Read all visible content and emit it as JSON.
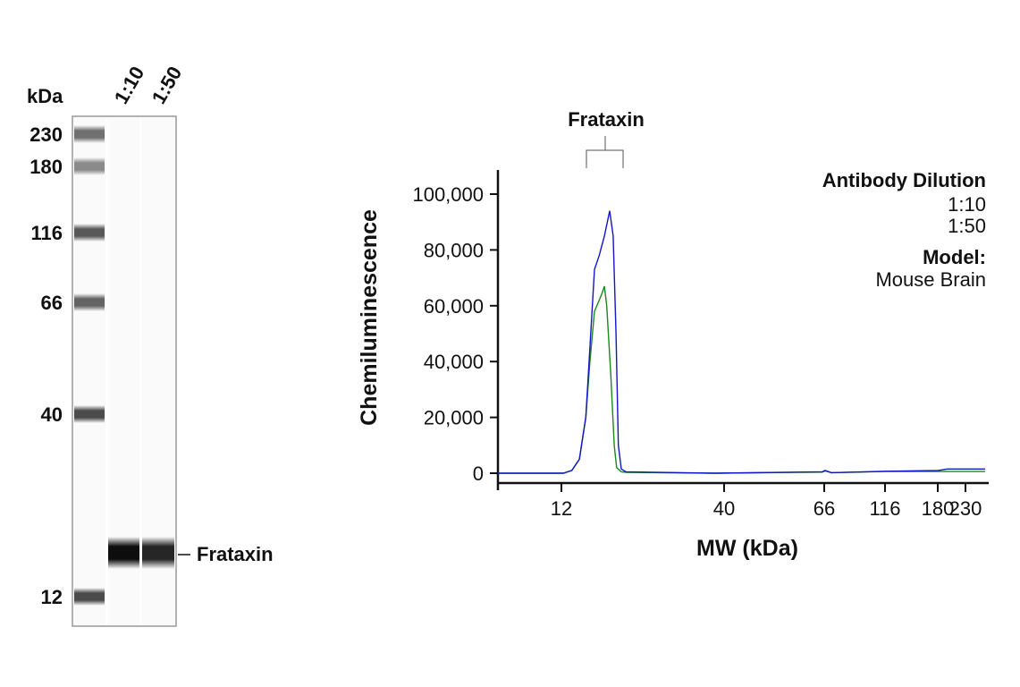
{
  "blot": {
    "unit_label": "kDa",
    "lane_labels": [
      "1:10",
      "1:50"
    ],
    "ladder": [
      {
        "label": "230",
        "kda": 230,
        "intensity": 0.55
      },
      {
        "label": "180",
        "kda": 180,
        "intensity": 0.45
      },
      {
        "label": "116",
        "kda": 116,
        "intensity": 0.65
      },
      {
        "label": "66",
        "kda": 66,
        "intensity": 0.6
      },
      {
        "label": "40",
        "kda": 40,
        "intensity": 0.7
      },
      {
        "label": "12",
        "kda": 12,
        "intensity": 0.7
      }
    ],
    "band_label": "Frataxin",
    "band_intensity": [
      0.95,
      0.85
    ]
  },
  "chart_data": {
    "type": "line",
    "title": "",
    "peak_annotation": "Frataxin",
    "xlabel": "MW (kDa)",
    "ylabel": "Chemiluminescence",
    "x_ticks": [
      12,
      40,
      66,
      116,
      180,
      230
    ],
    "x_tick_labels": [
      "12",
      "40",
      "66",
      "116",
      "180",
      "230"
    ],
    "y_ticks": [
      0,
      20000,
      40000,
      60000,
      80000,
      100000
    ],
    "y_tick_labels": [
      "0",
      "20,000",
      "40,000",
      "60,000",
      "80,000",
      "100,000"
    ],
    "ylim": [
      0,
      110000
    ],
    "grid": false,
    "legend": {
      "title": "Antibody Dilution",
      "placement": "top-right",
      "model_label": "Model:",
      "model_value": "Mouse Brain"
    },
    "series": [
      {
        "name": "1:10",
        "color": "#1414c8",
        "label_color": "#2a3f9d",
        "x": [
          1.1,
          12.3,
          13.8,
          15.1,
          16.2,
          16.9,
          17.7,
          18.5,
          19.4,
          20.3,
          20.9,
          21.4,
          21.8,
          22.3,
          23.1,
          38.5,
          65.5,
          66.7,
          71.9,
          116,
          181,
          197,
          262
        ],
        "y": [
          0,
          0,
          1000,
          5000,
          20000,
          45000,
          73000,
          78000,
          85000,
          94000,
          85000,
          50000,
          10000,
          1500,
          500,
          0,
          500,
          1000,
          200,
          700,
          1000,
          1500,
          1500
        ]
      },
      {
        "name": "1:50",
        "color": "#1a8a1a",
        "label_color": "#1a8a3a",
        "x": [
          1.1,
          12.3,
          13.8,
          15.1,
          16.2,
          16.9,
          17.7,
          18.5,
          18.9,
          19.4,
          19.8,
          20.5,
          21.1,
          21.5,
          22.3,
          23.1,
          38.5,
          65.5,
          66.7,
          71.9,
          116,
          181,
          262
        ],
        "y": [
          0,
          0,
          1000,
          5000,
          20000,
          40000,
          58000,
          62000,
          64000,
          67000,
          60000,
          35000,
          10000,
          2000,
          500,
          300,
          0,
          400,
          800,
          200,
          600,
          600,
          600
        ]
      }
    ]
  }
}
